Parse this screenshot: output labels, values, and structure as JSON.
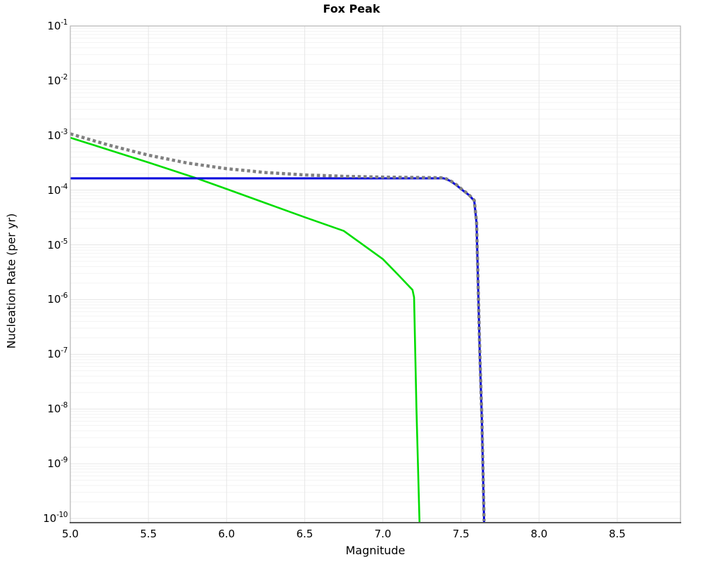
{
  "header": {
    "title": "Fox Peak"
  },
  "chart_data": {
    "type": "line",
    "title": "Fox Peak",
    "xlabel": "Magnitude",
    "ylabel": "Nucleation Rate (per yr)",
    "x_range": [
      5.0,
      8.91
    ],
    "y_range": [
      1e-10,
      0.1
    ],
    "y_scale": "log",
    "grid": true,
    "legend": "none",
    "background": "#ffffff",
    "grid_major_color": "#e6e6e6",
    "grid_minor_color": "#f3f3f3",
    "frame_color": "#b3b3b3",
    "axis_line_color": "#595959",
    "x_ticks": [
      {
        "value": 5.0,
        "label": "5.0"
      },
      {
        "value": 5.5,
        "label": "5.5"
      },
      {
        "value": 6.0,
        "label": "6.0"
      },
      {
        "value": 6.5,
        "label": "6.5"
      },
      {
        "value": 7.0,
        "label": "7.0"
      },
      {
        "value": 7.5,
        "label": "7.5"
      },
      {
        "value": 8.0,
        "label": "8.0"
      },
      {
        "value": 8.5,
        "label": "8.5"
      }
    ],
    "y_ticks": [
      {
        "value": 0.1,
        "base": "10",
        "exp": "-1"
      },
      {
        "value": 0.01,
        "base": "10",
        "exp": "-2"
      },
      {
        "value": 0.001,
        "base": "10",
        "exp": "-3"
      },
      {
        "value": 0.0001,
        "base": "10",
        "exp": "-4"
      },
      {
        "value": 1e-05,
        "base": "10",
        "exp": "-5"
      },
      {
        "value": 1e-06,
        "base": "10",
        "exp": "-6"
      },
      {
        "value": 1e-07,
        "base": "10",
        "exp": "-7"
      },
      {
        "value": 1e-08,
        "base": "10",
        "exp": "-8"
      },
      {
        "value": 1e-09,
        "base": "10",
        "exp": "-9"
      },
      {
        "value": 1e-10,
        "base": "10",
        "exp": "-10"
      }
    ],
    "series": [
      {
        "name": "green-rate-curve",
        "color": "#00dd00",
        "style": "solid",
        "width": 2.6,
        "points": [
          [
            5.0,
            0.00091
          ],
          [
            5.25,
            0.00054
          ],
          [
            5.5,
            0.00032
          ],
          [
            5.81,
            0.000164
          ],
          [
            6.0,
            0.000105
          ],
          [
            6.25,
            5.8e-05
          ],
          [
            6.5,
            3.2e-05
          ],
          [
            6.75,
            1.8e-05
          ],
          [
            7.0,
            5.5e-06
          ],
          [
            7.1,
            2.8e-06
          ],
          [
            7.19,
            1.5e-06
          ],
          [
            7.2,
            1.1e-06
          ],
          [
            7.215,
            1e-08
          ],
          [
            7.235,
            8e-11
          ]
        ]
      },
      {
        "name": "blue-flat-rate-curve",
        "color": "#0000dd",
        "style": "solid",
        "width": 3,
        "points": [
          [
            5.0,
            0.000164
          ],
          [
            7.39,
            0.000164
          ],
          [
            7.43,
            0.000148
          ],
          [
            7.47,
            0.000124
          ],
          [
            7.51,
            0.0001
          ],
          [
            7.55,
            8.2e-05
          ],
          [
            7.585,
            6.4e-05
          ],
          [
            7.6,
            2.5e-05
          ],
          [
            7.62,
            1.1e-07
          ],
          [
            7.634,
            6e-09
          ],
          [
            7.648,
            8.5e-11
          ]
        ]
      },
      {
        "name": "gray-dotted-rate-curve",
        "color": "#808080",
        "style": "dotted",
        "width": 4.5,
        "points": [
          [
            5.0,
            0.00107
          ],
          [
            5.25,
            0.00066
          ],
          [
            5.5,
            0.000435
          ],
          [
            5.75,
            0.000313
          ],
          [
            6.0,
            0.000247
          ],
          [
            6.25,
            0.00021
          ],
          [
            6.5,
            0.00019
          ],
          [
            6.75,
            0.000179
          ],
          [
            7.0,
            0.000173
          ],
          [
            7.25,
            0.00017
          ],
          [
            7.39,
            0.000168
          ],
          [
            7.43,
            0.00015
          ],
          [
            7.47,
            0.000126
          ],
          [
            7.51,
            0.000101
          ],
          [
            7.55,
            8.3e-05
          ],
          [
            7.585,
            6.5e-05
          ],
          [
            7.6,
            2.6e-05
          ],
          [
            7.62,
            1.2e-07
          ],
          [
            7.634,
            6.5e-09
          ],
          [
            7.648,
            9e-11
          ]
        ]
      }
    ]
  }
}
